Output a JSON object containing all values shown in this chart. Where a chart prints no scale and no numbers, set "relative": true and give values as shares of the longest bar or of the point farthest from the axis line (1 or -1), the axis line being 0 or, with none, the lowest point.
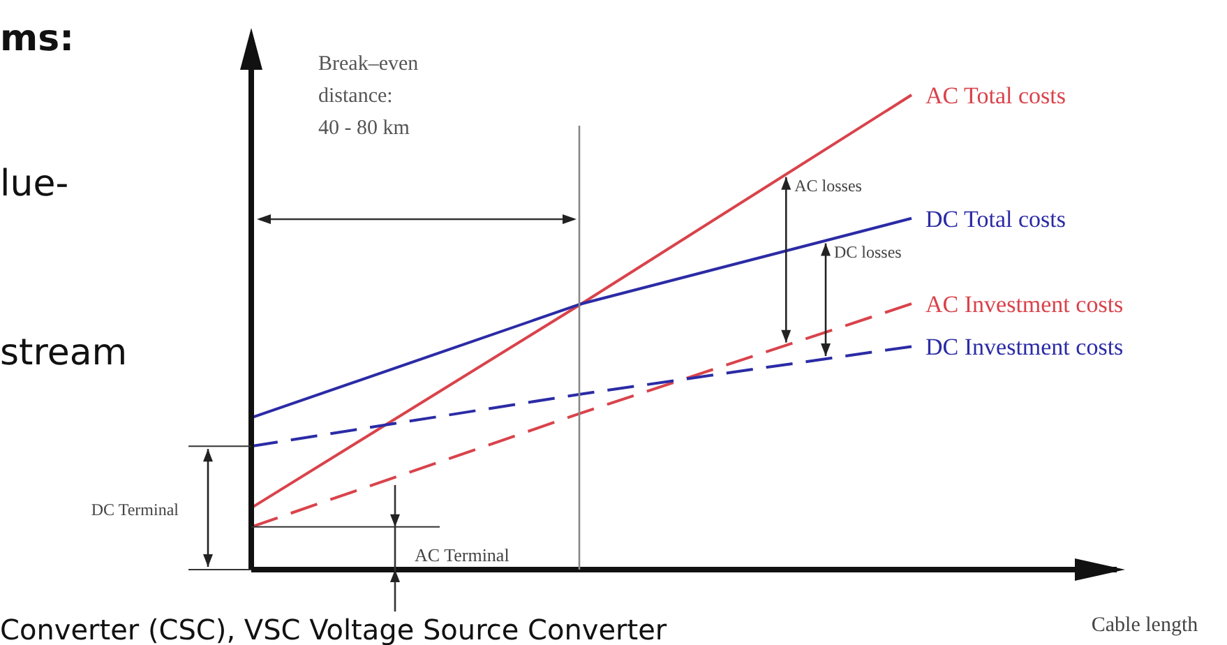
{
  "chart_data": {
    "type": "line",
    "relative": true,
    "xlabel": "Cable length",
    "legend": false,
    "categories": [
      null,
      null,
      null
    ],
    "series": [
      {
        "name": "AC Total costs",
        "color": "#d9434b",
        "values": [
          0.13,
          0.56,
          1.0
        ],
        "line_style": "solid"
      },
      {
        "name": "DC Total costs",
        "color": "#2b2ba6",
        "values": [
          0.32,
          0.56,
          0.74
        ],
        "line_style": "solid"
      },
      {
        "name": "AC Investment costs",
        "color": "#d9434b",
        "values": [
          0.09,
          0.33,
          0.56
        ],
        "line_style": "dashed"
      },
      {
        "name": "DC Investment costs",
        "color": "#2b2ba6",
        "values": [
          0.26,
          0.37,
          0.47
        ],
        "line_style": "dashed"
      }
    ],
    "annotations": [
      "AC losses",
      "DC losses",
      "DC Terminal",
      "AC Terminal",
      "ms:",
      "lue-",
      "stream",
      "Converter (CSC), VSC Voltage Source Converter",
      "Break–even\ndistance:\n40 - 80 km"
    ]
  }
}
